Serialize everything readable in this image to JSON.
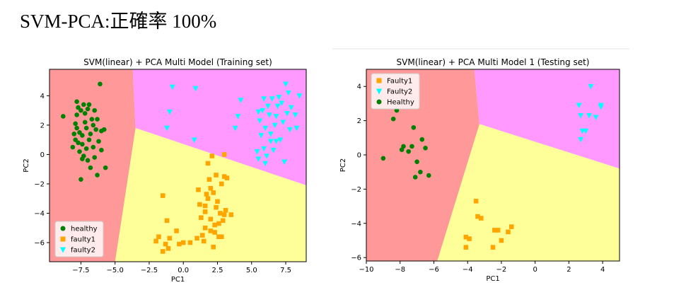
{
  "heading": "SVM-PCA:正確率 100%",
  "colors": {
    "healthy": "#008000",
    "faulty1": "#ffa500",
    "faulty2": "#00ffff",
    "region_healthy": "#ff9999",
    "region_faulty1": "#ffff99",
    "region_faulty2": "#ff99ff"
  },
  "chart_data": [
    {
      "type": "scatter",
      "title": "SVM(linear) + PCA Multi Model (Training set)",
      "xlabel": "PC1",
      "ylabel": "PC2",
      "xlim": [
        -9.8,
        9.0
      ],
      "ylim": [
        -7.3,
        5.8
      ],
      "xticks": [
        -7.5,
        -5.0,
        -2.5,
        0.0,
        2.5,
        5.0,
        7.5
      ],
      "xtick_labels": [
        "−7.5",
        "−5.0",
        "−2.5",
        "0.0",
        "2.5",
        "5.0",
        "7.5"
      ],
      "yticks": [
        -6,
        -4,
        -2,
        0,
        2,
        4
      ],
      "ytick_labels": [
        "−6",
        "−4",
        "−2",
        "0",
        "2",
        "4"
      ],
      "legend_position": "lower-left",
      "regions": [
        {
          "class": "healthy",
          "polygon": [
            [
              -9.8,
              5.8
            ],
            [
              -3.7,
              5.8
            ],
            [
              -3.5,
              1.8
            ],
            [
              -2.1,
              1.3
            ],
            [
              -5.0,
              -7.3
            ],
            [
              -9.8,
              -7.3
            ]
          ]
        },
        {
          "class": "faulty2",
          "polygon": [
            [
              -3.7,
              5.8
            ],
            [
              9.0,
              5.8
            ],
            [
              9.0,
              -2.1
            ],
            [
              -3.5,
              1.8
            ]
          ]
        },
        {
          "class": "faulty1",
          "polygon": [
            [
              -3.5,
              1.8
            ],
            [
              9.0,
              -2.1
            ],
            [
              9.0,
              -7.3
            ],
            [
              -5.0,
              -7.3
            ]
          ]
        }
      ],
      "series": [
        {
          "name": "healthy",
          "marker": "circle",
          "points": [
            [
              -8.8,
              2.6
            ],
            [
              -7.9,
              2.1
            ],
            [
              -7.8,
              3.6
            ],
            [
              -7.7,
              3.2
            ],
            [
              -7.5,
              3.0
            ],
            [
              -7.3,
              3.4
            ],
            [
              -7.8,
              1.8
            ],
            [
              -7.6,
              1.5
            ],
            [
              -7.2,
              2.8
            ],
            [
              -7.0,
              3.1
            ],
            [
              -6.9,
              1.0
            ],
            [
              -7.4,
              0.7
            ],
            [
              -7.6,
              0.2
            ],
            [
              -7.1,
              0.4
            ],
            [
              -6.8,
              1.4
            ],
            [
              -6.6,
              2.0
            ],
            [
              -6.4,
              1.7
            ],
            [
              -6.2,
              0.9
            ],
            [
              -6.5,
              -0.2
            ],
            [
              -6.3,
              -1.4
            ],
            [
              -6.8,
              -0.9
            ],
            [
              -7.0,
              -0.4
            ],
            [
              -7.9,
              1.0
            ],
            [
              -8.1,
              0.5
            ],
            [
              -7.4,
              -0.3
            ],
            [
              -6.1,
              4.8
            ],
            [
              -5.7,
              -0.9
            ],
            [
              -7.5,
              -1.7
            ],
            [
              -6.7,
              2.4
            ],
            [
              -7.2,
              2.2
            ],
            [
              -6.0,
              1.6
            ],
            [
              -6.3,
              2.4
            ],
            [
              -7.7,
              0.8
            ],
            [
              -6.9,
              3.4
            ],
            [
              -7.4,
              1.3
            ],
            [
              -8.0,
              1.4
            ],
            [
              -6.6,
              0.5
            ],
            [
              -7.1,
              1.8
            ],
            [
              -6.0,
              0.3
            ],
            [
              -7.8,
              2.7
            ],
            [
              -6.5,
              3.0
            ],
            [
              -5.8,
              1.7
            ],
            [
              -7.3,
              -0.1
            ]
          ]
        },
        {
          "name": "faulty1",
          "marker": "square",
          "points": [
            [
              1.8,
              -0.6
            ],
            [
              2.0,
              -2.3
            ],
            [
              1.8,
              -3.0
            ],
            [
              2.2,
              -2.6
            ],
            [
              1.6,
              -3.5
            ],
            [
              2.5,
              -3.2
            ],
            [
              2.7,
              -4.0
            ],
            [
              3.0,
              -4.1
            ],
            [
              2.3,
              -4.8
            ],
            [
              2.0,
              -5.2
            ],
            [
              1.5,
              -5.9
            ],
            [
              2.6,
              -5.6
            ],
            [
              2.2,
              -6.3
            ],
            [
              1.0,
              -5.7
            ],
            [
              0.5,
              -6.0
            ],
            [
              0.0,
              -6.0
            ],
            [
              -1.0,
              -5.7
            ],
            [
              -1.3,
              -6.1
            ],
            [
              -1.8,
              -5.6
            ],
            [
              -2.0,
              -5.9
            ],
            [
              -1.2,
              -4.5
            ],
            [
              -1.5,
              -2.8
            ],
            [
              -0.5,
              -5.2
            ],
            [
              1.3,
              -4.3
            ],
            [
              1.6,
              -3.9
            ],
            [
              2.4,
              -1.4
            ],
            [
              1.9,
              -1.7
            ],
            [
              3.0,
              -1.5
            ],
            [
              2.8,
              -2.0
            ],
            [
              3.2,
              -1.6
            ],
            [
              2.1,
              -0.1
            ],
            [
              1.1,
              -2.4
            ],
            [
              1.2,
              -3.4
            ],
            [
              2.0,
              -4.4
            ],
            [
              1.6,
              -5.0
            ],
            [
              2.3,
              -5.3
            ],
            [
              2.8,
              -5.6
            ],
            [
              3.1,
              -3.8
            ],
            [
              2.9,
              -4.5
            ],
            [
              3.5,
              -4.1
            ],
            [
              3.0,
              0.0
            ],
            [
              1.7,
              -2.7
            ],
            [
              2.4,
              -3.6
            ],
            [
              2.6,
              -4.7
            ],
            [
              1.4,
              -5.5
            ],
            [
              -1.1,
              -6.4
            ],
            [
              -1.5,
              -6.6
            ],
            [
              -0.3,
              -6.1
            ]
          ]
        },
        {
          "name": "faulty2",
          "marker": "triangle",
          "points": [
            [
              -0.8,
              4.6
            ],
            [
              0.9,
              4.5
            ],
            [
              -1.2,
              1.8
            ],
            [
              -1.0,
              2.9
            ],
            [
              0.8,
              1.0
            ],
            [
              3.8,
              1.8
            ],
            [
              4.2,
              3.7
            ],
            [
              4.0,
              2.6
            ],
            [
              5.6,
              2.3
            ],
            [
              5.8,
              3.0
            ],
            [
              6.0,
              1.8
            ],
            [
              6.2,
              3.3
            ],
            [
              6.5,
              3.8
            ],
            [
              6.8,
              2.6
            ],
            [
              7.0,
              3.9
            ],
            [
              7.3,
              2.2
            ],
            [
              7.5,
              4.8
            ],
            [
              7.7,
              4.2
            ],
            [
              7.9,
              3.2
            ],
            [
              8.2,
              2.7
            ],
            [
              8.5,
              4.0
            ],
            [
              6.4,
              1.4
            ],
            [
              6.7,
              2.0
            ],
            [
              7.1,
              1.0
            ],
            [
              5.9,
              0.4
            ],
            [
              6.1,
              -0.1
            ],
            [
              6.6,
              0.3
            ],
            [
              5.4,
              0.2
            ],
            [
              5.5,
              -0.3
            ],
            [
              6.0,
              -0.6
            ],
            [
              7.4,
              -0.5
            ],
            [
              6.8,
              0.9
            ],
            [
              5.7,
              1.3
            ],
            [
              6.3,
              2.7
            ],
            [
              7.2,
              3.5
            ],
            [
              7.8,
              1.7
            ],
            [
              8.3,
              1.8
            ],
            [
              6.9,
              3.3
            ],
            [
              5.5,
              2.9
            ],
            [
              7.6,
              2.8
            ],
            [
              6.4,
              0.9
            ],
            [
              5.9,
              3.8
            ]
          ]
        }
      ],
      "legend": [
        {
          "class": "healthy",
          "marker": "circle",
          "label": "healthy"
        },
        {
          "class": "faulty1",
          "marker": "square",
          "label": "faulty1"
        },
        {
          "class": "faulty2",
          "marker": "triangle",
          "label": "faulty2"
        }
      ]
    },
    {
      "type": "scatter",
      "title": "SVM(linear) + PCA Multi Model 1 (Testing set)",
      "xlabel": "PC1",
      "ylabel": "PC2",
      "xlim": [
        -10,
        5
      ],
      "ylim": [
        -6.2,
        5.0
      ],
      "xticks": [
        -10,
        -8,
        -6,
        -4,
        -2,
        0,
        2,
        4
      ],
      "xtick_labels": [
        "−10",
        "−8",
        "−6",
        "−4",
        "−2",
        "0",
        "2",
        "4"
      ],
      "yticks": [
        -6,
        -4,
        -2,
        0,
        2,
        4
      ],
      "ytick_labels": [
        "−6",
        "−4",
        "−2",
        "0",
        "2",
        "4"
      ],
      "legend_position": "upper-left",
      "regions": [
        {
          "class": "healthy",
          "polygon": [
            [
              -10,
              5.0
            ],
            [
              -3.6,
              5.0
            ],
            [
              -3.3,
              1.8
            ],
            [
              -2.2,
              1.3
            ],
            [
              -5.8,
              -6.2
            ],
            [
              -10,
              -6.2
            ]
          ]
        },
        {
          "class": "faulty2",
          "polygon": [
            [
              -3.6,
              5.0
            ],
            [
              5.0,
              5.0
            ],
            [
              5.0,
              -0.8
            ],
            [
              -3.3,
              1.8
            ]
          ]
        },
        {
          "class": "faulty1",
          "polygon": [
            [
              -3.3,
              1.8
            ],
            [
              5.0,
              -0.8
            ],
            [
              5.0,
              -6.2
            ],
            [
              -5.8,
              -6.2
            ]
          ]
        }
      ],
      "series": [
        {
          "name": "Faulty1",
          "marker": "square",
          "points": [
            [
              -3.5,
              -2.7
            ],
            [
              -3.4,
              -3.6
            ],
            [
              -3.2,
              -3.7
            ],
            [
              -4.1,
              -4.8
            ],
            [
              -3.9,
              -4.9
            ],
            [
              -4.1,
              -5.4
            ],
            [
              -2.2,
              -4.4
            ],
            [
              -2.4,
              -4.4
            ],
            [
              -2.0,
              -5.0
            ],
            [
              -1.6,
              -4.5
            ],
            [
              -1.4,
              -4.2
            ],
            [
              -2.5,
              -5.4
            ]
          ]
        },
        {
          "name": "Faulty2",
          "marker": "triangle",
          "points": [
            [
              2.6,
              2.9
            ],
            [
              3.3,
              4.0
            ],
            [
              3.9,
              2.9
            ],
            [
              3.9,
              2.8
            ],
            [
              2.7,
              2.3
            ],
            [
              3.2,
              2.3
            ],
            [
              3.6,
              2.2
            ],
            [
              2.8,
              1.4
            ],
            [
              3.0,
              1.4
            ],
            [
              2.7,
              0.9
            ]
          ]
        },
        {
          "name": "Healthy",
          "marker": "circle",
          "points": [
            [
              -8.4,
              2.1
            ],
            [
              -8.2,
              2.6
            ],
            [
              -7.9,
              0.3
            ],
            [
              -7.8,
              0.5
            ],
            [
              -7.5,
              0.2
            ],
            [
              -7.3,
              0.5
            ],
            [
              -7.2,
              1.6
            ],
            [
              -7.1,
              -1.3
            ],
            [
              -7.0,
              -0.4
            ],
            [
              -6.8,
              -1.0
            ],
            [
              -6.7,
              0.9
            ],
            [
              -6.5,
              0.4
            ],
            [
              -6.3,
              -1.2
            ],
            [
              -9.0,
              -0.2
            ]
          ]
        }
      ],
      "legend": [
        {
          "class": "faulty1",
          "marker": "square",
          "label": "Faulty1"
        },
        {
          "class": "faulty2",
          "marker": "triangle",
          "label": "Faulty2"
        },
        {
          "class": "healthy",
          "marker": "circle",
          "label": "Healthy"
        }
      ]
    }
  ]
}
